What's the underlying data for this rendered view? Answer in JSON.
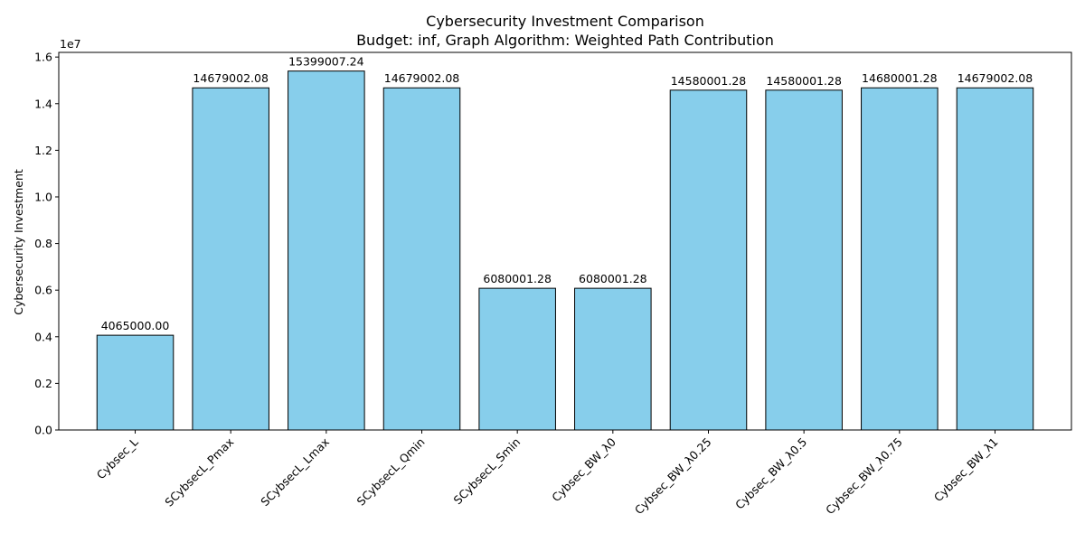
{
  "chart_data": {
    "type": "bar",
    "title": "Cybersecurity Investment Comparison",
    "subtitle": "Budget: inf, Graph Algorithm: Weighted Path Contribution",
    "ylabel": "Cybersecurity Investment",
    "xlabel": "",
    "y_scale_label": "1e7",
    "y_scale": 10000000,
    "ylim": [
      0,
      16200000
    ],
    "y_ticks": [
      0,
      2000000,
      4000000,
      6000000,
      8000000,
      10000000,
      12000000,
      14000000,
      16000000
    ],
    "y_tick_labels": [
      "0.0",
      "0.2",
      "0.4",
      "0.6",
      "0.8",
      "1.0",
      "1.2",
      "1.4",
      "1.6"
    ],
    "grid": false,
    "bar_color": "#87ceeb",
    "edge_color": "#000000",
    "categories": [
      "Cybsec_L",
      "SCybsecL_Pmax",
      "SCybsecL_Lmax",
      "SCybsecL_Qmin",
      "SCybsecL_Smin",
      "Cybsec_BW_λ0",
      "Cybsec_BW_λ0.25",
      "Cybsec_BW_λ0.5",
      "Cybsec_BW_λ0.75",
      "Cybsec_BW_λ1"
    ],
    "values": [
      4065000.0,
      14679002.08,
      15399007.24,
      14679002.08,
      6080001.28,
      6080001.28,
      14580001.28,
      14580001.28,
      14680001.28,
      14679002.08
    ],
    "value_labels": [
      "4065000.00",
      "14679002.08",
      "15399007.24",
      "14679002.08",
      "6080001.28",
      "6080001.28",
      "14580001.28",
      "14580001.28",
      "14680001.28",
      "14679002.08"
    ]
  }
}
